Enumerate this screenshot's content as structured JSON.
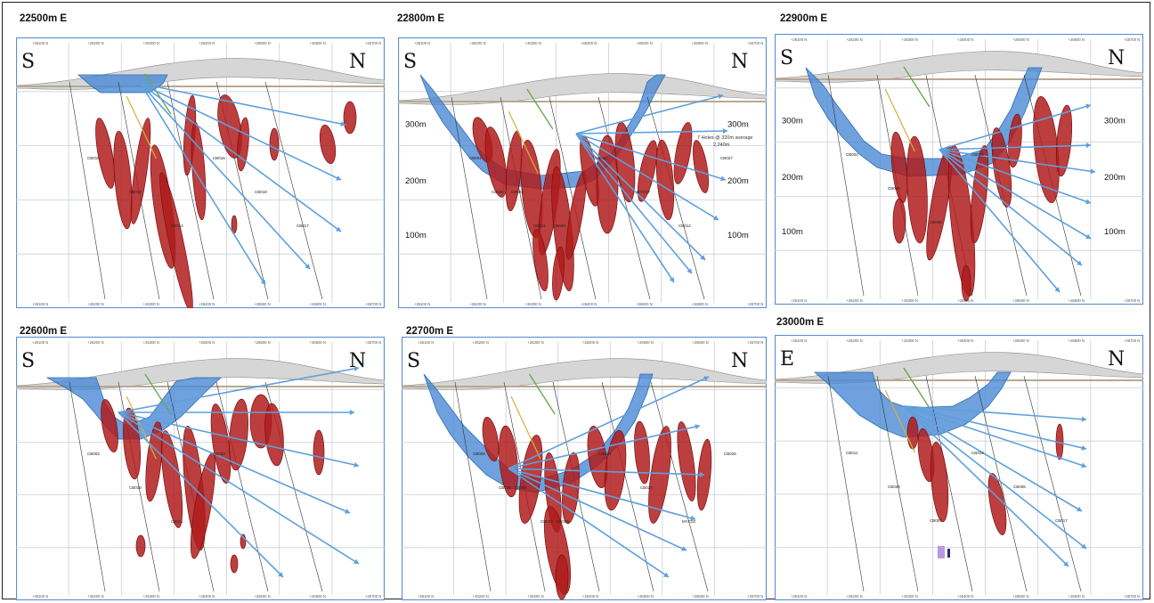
{
  "panels": [
    {
      "id": "p22500",
      "title": "22500m E",
      "left_label": "S",
      "right_label": "N",
      "left_elev": [],
      "right_elev": [],
      "note": "",
      "tick_labels_top": [
        "+26100 N",
        "+26200 N",
        "+26300 N",
        "+26400 N",
        "+26500 N",
        "+26600 N",
        "+26700 N"
      ],
      "tick_labels_bottom": [
        "+26100 N",
        "+26200 N",
        "+26300 N",
        "+26400 N",
        "+26500 N",
        "+26600 N",
        "+26700 N"
      ],
      "hole_labels": [
        "CB015",
        "CB013",
        "CB014",
        "CB016",
        "CB018",
        "CB017"
      ]
    },
    {
      "id": "p22800",
      "title": "22800m E",
      "left_label": "S",
      "right_label": "N",
      "left_elev": [
        "300m",
        "200m",
        "100m"
      ],
      "right_elev": [
        "300m",
        "200m",
        "100m"
      ],
      "note": "7 Holes @ 320m average - 2,240m",
      "tick_labels_top": [
        "+26100 N",
        "+26200 N",
        "+26300 N",
        "+26400 N",
        "+26500 N",
        "+26600 N",
        "+26700 N"
      ],
      "tick_labels_bottom": [
        "+26100 N",
        "+26200 N",
        "+26300 N",
        "+26400 N",
        "+26500 N",
        "+26600 N",
        "+26700 N"
      ],
      "hole_labels": [
        "CB001",
        "CB002",
        "CB008",
        "CB031",
        "MYC07",
        "CB012",
        "CB027",
        "CB026",
        "CB021"
      ]
    },
    {
      "id": "p22900",
      "title": "22900m E",
      "left_label": "S",
      "right_label": "N",
      "left_elev": [
        "300m",
        "200m",
        "100m"
      ],
      "right_elev": [
        "300m",
        "200m",
        "100m"
      ],
      "note": "",
      "tick_labels_top": [
        "+26100 N",
        "+26200 N",
        "+26300 N",
        "+26400 N",
        "+26500 N",
        "+26600 N",
        "+26700 N"
      ],
      "tick_labels_bottom": [
        "+26100 N",
        "+26200 N",
        "+26300 N",
        "+26400 N",
        "+26500 N",
        "+26600 N",
        "+26700 N"
      ],
      "hole_labels": [
        "CB002",
        "CB009",
        "CB030",
        "CB025"
      ]
    },
    {
      "id": "p22600",
      "title": "22600m E",
      "left_label": "S",
      "right_label": "N",
      "left_elev": [],
      "right_elev": [],
      "note": "",
      "tick_labels_top": [
        "+26100 N",
        "+26200 N",
        "+26300 N",
        "+26400 N",
        "+26500 N",
        "+26600 N",
        "+26700 N"
      ],
      "tick_labels_bottom": [
        "+26100 N",
        "+26200 N",
        "+26300 N",
        "+26400 N",
        "+26500 N",
        "+26600 N",
        "+26700 N"
      ],
      "hole_labels": [
        "CB003",
        "CB010",
        "CB011",
        "CB032"
      ]
    },
    {
      "id": "p22700",
      "title": "22700m E",
      "left_label": "S",
      "right_label": "N",
      "left_elev": [],
      "right_elev": [],
      "note": "",
      "tick_labels_top": [
        "+26100 N",
        "+26200 N",
        "+26300 N",
        "+26400 N",
        "+26500 N",
        "+26600 N",
        "+26700 N"
      ],
      "tick_labels_bottom": [
        "+26100 N",
        "+26200 N",
        "+26300 N",
        "+26400 N",
        "+26500 N",
        "+26600 N",
        "+26700 N"
      ],
      "hole_labels": [
        "CB005",
        "CB004",
        "CB019",
        "CB020",
        "CB024",
        "MYC03",
        "CB028",
        "CB029",
        "CB023"
      ]
    },
    {
      "id": "p23000",
      "title": "23000m E",
      "left_label": "E",
      "right_label": "N",
      "left_elev": [],
      "right_elev": [],
      "note": "",
      "tick_labels_top": [
        "+26100 N",
        "+26200 N",
        "+26300 N",
        "+26400 N",
        "+26500 N",
        "+26600 N",
        "+26700 N"
      ],
      "tick_labels_bottom": [
        "+26100 N",
        "+26200 N",
        "+26300 N",
        "+26400 N",
        "+26500 N",
        "+26600 N",
        "+26700 N"
      ],
      "hole_labels": [
        "CB011",
        "CB033",
        "CB007",
        "CB022",
        "CB006",
        "CB017"
      ]
    }
  ],
  "colors": {
    "pit": "#4a8ad4",
    "pit_dark": "#2f6db5",
    "drillhole": "#5ea0dc",
    "orebody": "#b01c1c",
    "orebody_edge": "#7a0f0f",
    "topo": "#a9a9a9",
    "grid": "#c8d0d8",
    "border": "#5a8fd0"
  }
}
